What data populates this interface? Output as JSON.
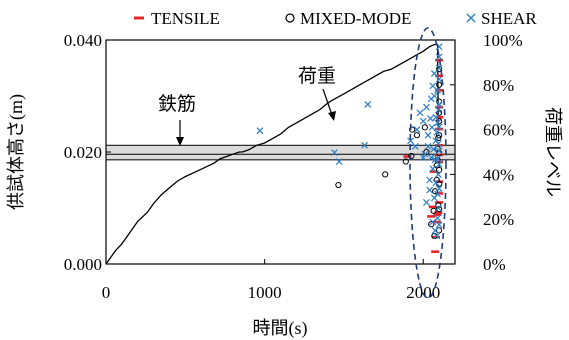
{
  "chart_data": {
    "type": "scatter",
    "title": "",
    "xlabel": "時間(s)",
    "ylabel_left": "供試体高さ(m)",
    "ylabel_right": "荷重レベル",
    "xlim": [
      0,
      2200
    ],
    "ylim_left": [
      0.0,
      0.04
    ],
    "ylim_right": [
      0,
      100
    ],
    "x_ticks": [
      "0",
      "1000",
      "2000"
    ],
    "y_left_ticks": [
      "0.000",
      "0.020",
      "0.040"
    ],
    "y_right_ticks": [
      "0%",
      "20%",
      "40%",
      "60%",
      "80%",
      "100%"
    ],
    "legend_position": "top",
    "grid": false,
    "legend": {
      "tensile": "TENSILE",
      "mixed": "MIXED-MODE",
      "shear": "SHEAR"
    },
    "annotations": {
      "rebar": "鉄筋",
      "load": "荷重"
    },
    "rebar_band": {
      "y_min": 0.0186,
      "y_max": 0.0212,
      "y_mid": 0.0196
    },
    "colors": {
      "tensile": "#e8252a",
      "mixed": "#000000",
      "shear": "#2d7fc8",
      "band": "#dcdcdc",
      "ellipse": "#1f3b7a"
    },
    "load_curve": [
      [
        0,
        0
      ],
      [
        30,
        3
      ],
      [
        60,
        6
      ],
      [
        100,
        9
      ],
      [
        150,
        14
      ],
      [
        200,
        19
      ],
      [
        260,
        23
      ],
      [
        300,
        27
      ],
      [
        350,
        31
      ],
      [
        400,
        34
      ],
      [
        450,
        37
      ],
      [
        500,
        39
      ],
      [
        560,
        41
      ],
      [
        620,
        43
      ],
      [
        680,
        45
      ],
      [
        720,
        47
      ],
      [
        760,
        48
      ],
      [
        800,
        49
      ],
      [
        840,
        50
      ],
      [
        860,
        50
      ],
      [
        900,
        51
      ],
      [
        950,
        53
      ],
      [
        1000,
        54
      ],
      [
        1050,
        56
      ],
      [
        1100,
        58
      ],
      [
        1150,
        61
      ],
      [
        1200,
        63
      ],
      [
        1250,
        65
      ],
      [
        1300,
        67
      ],
      [
        1350,
        69
      ],
      [
        1400,
        72
      ],
      [
        1450,
        74
      ],
      [
        1500,
        76
      ],
      [
        1550,
        78
      ],
      [
        1600,
        80
      ],
      [
        1650,
        82
      ],
      [
        1700,
        84
      ],
      [
        1750,
        86
      ],
      [
        1800,
        87
      ],
      [
        1850,
        89
      ],
      [
        1900,
        91
      ],
      [
        1950,
        93
      ],
      [
        2000,
        95
      ],
      [
        2040,
        97
      ],
      [
        2070,
        98
      ],
      [
        2090,
        98
      ],
      [
        2095,
        60
      ],
      [
        2100,
        60
      ]
    ],
    "series": [
      {
        "name": "TENSILE",
        "marker": "dash",
        "points": [
          [
            1900,
            0.0192
          ],
          [
            2050,
            0.0085
          ],
          [
            2060,
            0.0102
          ],
          [
            2065,
            0.0165
          ],
          [
            2075,
            0.0022
          ],
          [
            2080,
            0.0048
          ],
          [
            2085,
            0.0075
          ],
          [
            2090,
            0.0088
          ],
          [
            2095,
            0.0092
          ],
          [
            2100,
            0.011
          ],
          [
            2100,
            0.0126
          ],
          [
            2100,
            0.0147
          ],
          [
            2100,
            0.0182
          ],
          [
            2100,
            0.0195
          ],
          [
            2100,
            0.0212
          ],
          [
            2100,
            0.0241
          ],
          [
            2100,
            0.0262
          ],
          [
            2100,
            0.028
          ],
          [
            2100,
            0.031
          ],
          [
            2100,
            0.0336
          ],
          [
            2100,
            0.0364
          ]
        ]
      },
      {
        "name": "MIXED-MODE",
        "marker": "circle",
        "points": [
          [
            1465,
            0.0141
          ],
          [
            1760,
            0.016
          ],
          [
            1890,
            0.0183
          ],
          [
            1925,
            0.0193
          ],
          [
            1930,
            0.024
          ],
          [
            1960,
            0.023
          ],
          [
            2010,
            0.0244
          ],
          [
            2020,
            0.02
          ],
          [
            2050,
            0.0071
          ],
          [
            2065,
            0.0095
          ],
          [
            2070,
            0.005
          ],
          [
            2075,
            0.013
          ],
          [
            2085,
            0.015
          ],
          [
            2085,
            0.0176
          ],
          [
            2090,
            0.0186
          ],
          [
            2090,
            0.0206
          ],
          [
            2095,
            0.0105
          ],
          [
            2095,
            0.0225
          ],
          [
            2100,
            0.006
          ],
          [
            2100,
            0.0098
          ],
          [
            2100,
            0.0143
          ],
          [
            2100,
            0.0168
          ],
          [
            2100,
            0.0198
          ],
          [
            2100,
            0.023
          ],
          [
            2100,
            0.0255
          ],
          [
            2100,
            0.027
          ],
          [
            2100,
            0.029
          ],
          [
            2100,
            0.032
          ],
          [
            2100,
            0.0348
          ]
        ]
      },
      {
        "name": "SHEAR",
        "marker": "x",
        "points": [
          [
            970,
            0.0238
          ],
          [
            1440,
            0.0199
          ],
          [
            1470,
            0.0183
          ],
          [
            1630,
            0.0212
          ],
          [
            1650,
            0.0285
          ],
          [
            1920,
            0.022
          ],
          [
            1950,
            0.021
          ],
          [
            1960,
            0.024
          ],
          [
            1980,
            0.027
          ],
          [
            2000,
            0.019
          ],
          [
            2000,
            0.0255
          ],
          [
            2010,
            0.0196
          ],
          [
            2020,
            0.011
          ],
          [
            2020,
            0.028
          ],
          [
            2030,
            0.021
          ],
          [
            2030,
            0.023
          ],
          [
            2040,
            0.0132
          ],
          [
            2040,
            0.015
          ],
          [
            2045,
            0.026
          ],
          [
            2050,
            0.019
          ],
          [
            2050,
            0.0295
          ],
          [
            2055,
            0.0244
          ],
          [
            2060,
            0.0075
          ],
          [
            2060,
            0.017
          ],
          [
            2060,
            0.0318
          ],
          [
            2065,
            0.0205
          ],
          [
            2070,
            0.0118
          ],
          [
            2070,
            0.03
          ],
          [
            2070,
            0.034
          ],
          [
            2075,
            0.006
          ],
          [
            2075,
            0.0186
          ],
          [
            2080,
            0.0145
          ],
          [
            2080,
            0.022
          ],
          [
            2080,
            0.0262
          ],
          [
            2085,
            0.005
          ],
          [
            2085,
            0.0235
          ],
          [
            2090,
            0.0082
          ],
          [
            2090,
            0.0125
          ],
          [
            2090,
            0.0188
          ],
          [
            2090,
            0.0252
          ],
          [
            2090,
            0.031
          ],
          [
            2095,
            0.01
          ],
          [
            2095,
            0.016
          ],
          [
            2095,
            0.0215
          ],
          [
            2095,
            0.0275
          ],
          [
            2100,
            0.007
          ],
          [
            2100,
            0.0135
          ],
          [
            2100,
            0.0178
          ],
          [
            2100,
            0.0202
          ],
          [
            2100,
            0.0245
          ],
          [
            2100,
            0.0285
          ],
          [
            2100,
            0.033
          ],
          [
            2100,
            0.035
          ],
          [
            2100,
            0.037
          ],
          [
            2100,
            0.0388
          ]
        ]
      }
    ]
  }
}
